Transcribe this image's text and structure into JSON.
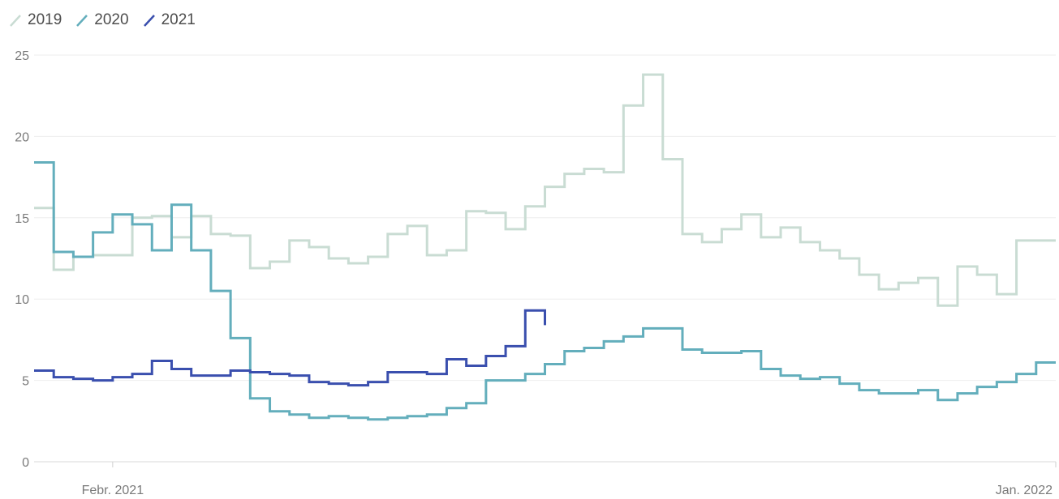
{
  "chart_data": {
    "type": "line",
    "step": true,
    "x_domain": [
      "2021-01-04",
      "2022-01-03"
    ],
    "ylim": [
      0,
      25
    ],
    "y_ticks": [
      0,
      5,
      10,
      15,
      20,
      25
    ],
    "x_ticks": [
      {
        "date": "2021-02-01",
        "label": "Febr. 2021"
      },
      {
        "date": "2022-01-03",
        "label": "Jan. 2022"
      }
    ],
    "grid": true,
    "legend_position": "top-left",
    "series": [
      {
        "name": "2019",
        "color": "#c9dcd3",
        "x": [
          "2021-01-04",
          "2021-01-11",
          "2021-01-18",
          "2021-01-25",
          "2021-02-01",
          "2021-02-08",
          "2021-02-15",
          "2021-02-22",
          "2021-03-01",
          "2021-03-08",
          "2021-03-15",
          "2021-03-22",
          "2021-03-29",
          "2021-04-05",
          "2021-04-12",
          "2021-04-19",
          "2021-04-26",
          "2021-05-03",
          "2021-05-10",
          "2021-05-17",
          "2021-05-24",
          "2021-05-31",
          "2021-06-07",
          "2021-06-14",
          "2021-06-21",
          "2021-06-28",
          "2021-07-05",
          "2021-07-12",
          "2021-07-19",
          "2021-07-26",
          "2021-08-02",
          "2021-08-09",
          "2021-08-16",
          "2021-08-23",
          "2021-08-30",
          "2021-09-06",
          "2021-09-13",
          "2021-09-20",
          "2021-09-27",
          "2021-10-04",
          "2021-10-11",
          "2021-10-18",
          "2021-10-25",
          "2021-11-01",
          "2021-11-08",
          "2021-11-15",
          "2021-11-22",
          "2021-11-29",
          "2021-12-06",
          "2021-12-13",
          "2021-12-20",
          "2021-12-27",
          "2022-01-03"
        ],
        "values": [
          15.6,
          11.8,
          12.6,
          12.7,
          12.7,
          15.0,
          15.1,
          13.8,
          15.1,
          14.0,
          13.9,
          11.9,
          12.3,
          13.6,
          13.2,
          12.5,
          12.2,
          12.6,
          14.0,
          14.5,
          12.7,
          13.0,
          15.4,
          15.3,
          14.3,
          15.7,
          16.9,
          17.7,
          18.0,
          17.8,
          21.9,
          23.8,
          18.6,
          14.0,
          13.5,
          14.3,
          15.2,
          13.8,
          14.4,
          13.5,
          13.0,
          12.5,
          11.5,
          10.6,
          11.0,
          11.3,
          9.6,
          12.0,
          11.5,
          10.3,
          13.6,
          13.6,
          13.6
        ]
      },
      {
        "name": "2020",
        "color": "#63aebc",
        "x": [
          "2021-01-04",
          "2021-01-11",
          "2021-01-18",
          "2021-01-25",
          "2021-02-01",
          "2021-02-08",
          "2021-02-15",
          "2021-02-22",
          "2021-03-01",
          "2021-03-08",
          "2021-03-15",
          "2021-03-22",
          "2021-03-29",
          "2021-04-05",
          "2021-04-12",
          "2021-04-19",
          "2021-04-26",
          "2021-05-03",
          "2021-05-10",
          "2021-05-17",
          "2021-05-24",
          "2021-05-31",
          "2021-06-07",
          "2021-06-14",
          "2021-06-21",
          "2021-06-28",
          "2021-07-05",
          "2021-07-12",
          "2021-07-19",
          "2021-07-26",
          "2021-08-02",
          "2021-08-09",
          "2021-08-16",
          "2021-08-23",
          "2021-08-30",
          "2021-09-06",
          "2021-09-13",
          "2021-09-20",
          "2021-09-27",
          "2021-10-04",
          "2021-10-11",
          "2021-10-18",
          "2021-10-25",
          "2021-11-01",
          "2021-11-08",
          "2021-11-15",
          "2021-11-22",
          "2021-11-29",
          "2021-12-06",
          "2021-12-13",
          "2021-12-20",
          "2021-12-27",
          "2022-01-03"
        ],
        "values": [
          18.4,
          12.9,
          12.6,
          14.1,
          15.2,
          14.6,
          13.0,
          15.8,
          13.0,
          10.5,
          7.6,
          3.9,
          3.1,
          2.9,
          2.7,
          2.8,
          2.7,
          2.6,
          2.7,
          2.8,
          2.9,
          3.3,
          3.6,
          5.0,
          5.0,
          5.4,
          6.0,
          6.8,
          7.0,
          7.4,
          7.7,
          8.2,
          8.2,
          6.9,
          6.7,
          6.7,
          6.8,
          5.7,
          5.3,
          5.1,
          5.2,
          4.8,
          4.4,
          4.2,
          4.2,
          4.4,
          3.8,
          4.2,
          4.6,
          4.9,
          5.4,
          6.1,
          6.1
        ]
      },
      {
        "name": "2021",
        "color": "#3a4fae",
        "x": [
          "2021-01-04",
          "2021-01-11",
          "2021-01-18",
          "2021-01-25",
          "2021-02-01",
          "2021-02-08",
          "2021-02-15",
          "2021-02-22",
          "2021-03-01",
          "2021-03-08",
          "2021-03-15",
          "2021-03-22",
          "2021-03-29",
          "2021-04-05",
          "2021-04-12",
          "2021-04-19",
          "2021-04-26",
          "2021-05-03",
          "2021-05-10",
          "2021-05-17",
          "2021-05-24",
          "2021-05-31",
          "2021-06-07",
          "2021-06-14",
          "2021-06-21",
          "2021-06-28"
        ],
        "values": [
          5.6,
          5.2,
          5.1,
          5.0,
          5.2,
          5.4,
          6.2,
          5.7,
          5.3,
          5.3,
          5.6,
          5.5,
          5.4,
          5.3,
          4.9,
          4.8,
          4.7,
          4.9,
          5.5,
          5.5,
          5.4,
          6.3,
          5.9,
          6.5,
          7.1,
          9.3
        ],
        "end_value": 8.4,
        "end_date": "2021-07-05"
      }
    ]
  }
}
